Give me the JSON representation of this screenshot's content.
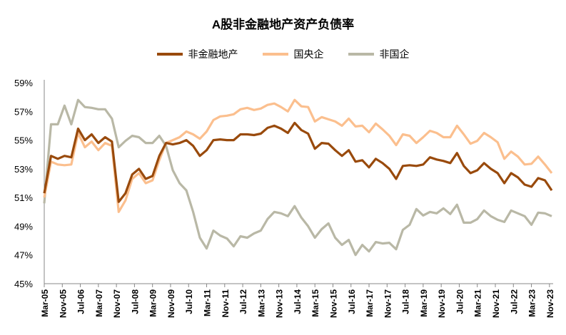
{
  "chart_data": {
    "type": "line",
    "title": "A股非金融地产资产负债率",
    "xlabel": "",
    "ylabel": "",
    "frequency": "quarterly",
    "x_range": [
      "Mar-05",
      "Dec-23"
    ],
    "ylim": [
      45,
      59
    ],
    "y_ticks": [
      "45%",
      "47%",
      "49%",
      "51%",
      "53%",
      "55%",
      "57%",
      "59%"
    ],
    "x_tick_labels": [
      "Mar-05",
      "Nov-05",
      "Jul-06",
      "Mar-07",
      "Nov-07",
      "Jul-08",
      "Mar-09",
      "Nov-09",
      "Jul-10",
      "Mar-11",
      "Nov-11",
      "Jul-12",
      "Mar-13",
      "Nov-13",
      "Jul-14",
      "Mar-15",
      "Nov-15",
      "Jul-16",
      "Mar-17",
      "Nov-17",
      "Jul-18",
      "Mar-19",
      "Nov-19",
      "Jul-20",
      "Mar-21",
      "Nov-21",
      "Jul-22",
      "Mar-23",
      "Nov-23"
    ],
    "grid": false,
    "legend_position": "top",
    "series": [
      {
        "name": "非金融地产",
        "color": "#994a0c",
        "values": [
          51.3,
          53.9,
          53.7,
          53.9,
          53.8,
          55.8,
          55.0,
          55.4,
          54.8,
          55.2,
          54.9,
          50.7,
          51.3,
          52.6,
          53.0,
          52.3,
          52.5,
          53.9,
          54.8,
          54.7,
          54.8,
          55.0,
          54.6,
          53.9,
          54.3,
          55.0,
          55.05,
          55.0,
          55.0,
          55.4,
          55.4,
          55.35,
          55.45,
          55.85,
          56.0,
          55.8,
          55.5,
          56.2,
          55.7,
          55.45,
          54.4,
          54.8,
          54.75,
          54.3,
          53.9,
          54.3,
          53.5,
          53.6,
          53.1,
          53.7,
          53.4,
          53.0,
          52.3,
          53.2,
          53.25,
          53.2,
          53.3,
          53.8,
          53.65,
          53.55,
          53.4,
          54.1,
          53.2,
          52.7,
          52.9,
          53.4,
          53.0,
          52.7,
          52.0,
          52.7,
          52.4,
          51.9,
          51.75,
          52.35,
          52.2,
          51.5
        ]
      },
      {
        "name": "国央企",
        "color": "#fbbf8e",
        "values": [
          51.0,
          53.5,
          53.3,
          53.25,
          53.3,
          55.5,
          54.5,
          54.9,
          54.3,
          54.8,
          54.6,
          50.0,
          50.8,
          52.3,
          52.7,
          52.0,
          52.2,
          53.6,
          54.8,
          55.0,
          55.2,
          55.6,
          55.4,
          55.1,
          55.6,
          56.4,
          56.65,
          56.7,
          56.8,
          57.15,
          57.25,
          57.1,
          57.2,
          57.45,
          57.55,
          57.3,
          57.0,
          57.8,
          57.35,
          57.3,
          56.3,
          56.6,
          56.45,
          56.3,
          56.0,
          56.5,
          55.95,
          56.0,
          55.55,
          56.15,
          55.75,
          55.3,
          54.65,
          55.4,
          55.3,
          54.8,
          55.2,
          55.65,
          55.5,
          55.2,
          55.2,
          56.0,
          55.4,
          54.75,
          54.95,
          55.5,
          55.2,
          54.85,
          53.7,
          54.2,
          53.85,
          53.3,
          53.35,
          53.85,
          53.3,
          52.7
        ]
      },
      {
        "name": "非国企",
        "color": "#b9b8a6",
        "values": [
          50.6,
          56.1,
          56.1,
          57.4,
          56.1,
          57.8,
          57.3,
          57.25,
          57.15,
          57.15,
          56.5,
          54.5,
          54.95,
          55.3,
          55.2,
          54.8,
          54.8,
          55.3,
          54.6,
          52.9,
          52.0,
          51.5,
          50.0,
          48.2,
          47.45,
          48.7,
          48.35,
          48.15,
          47.6,
          48.3,
          48.2,
          48.5,
          48.7,
          49.5,
          50.0,
          49.9,
          49.7,
          50.4,
          49.6,
          49.0,
          48.2,
          48.8,
          49.2,
          48.2,
          47.7,
          48.05,
          47.0,
          47.7,
          47.25,
          47.9,
          47.8,
          47.85,
          47.4,
          48.75,
          49.1,
          50.2,
          49.75,
          50.0,
          49.9,
          50.25,
          49.85,
          50.5,
          49.25,
          49.25,
          49.5,
          50.1,
          49.7,
          49.45,
          49.3,
          50.1,
          49.9,
          49.7,
          49.1,
          49.95,
          49.9,
          49.7
        ]
      }
    ]
  }
}
